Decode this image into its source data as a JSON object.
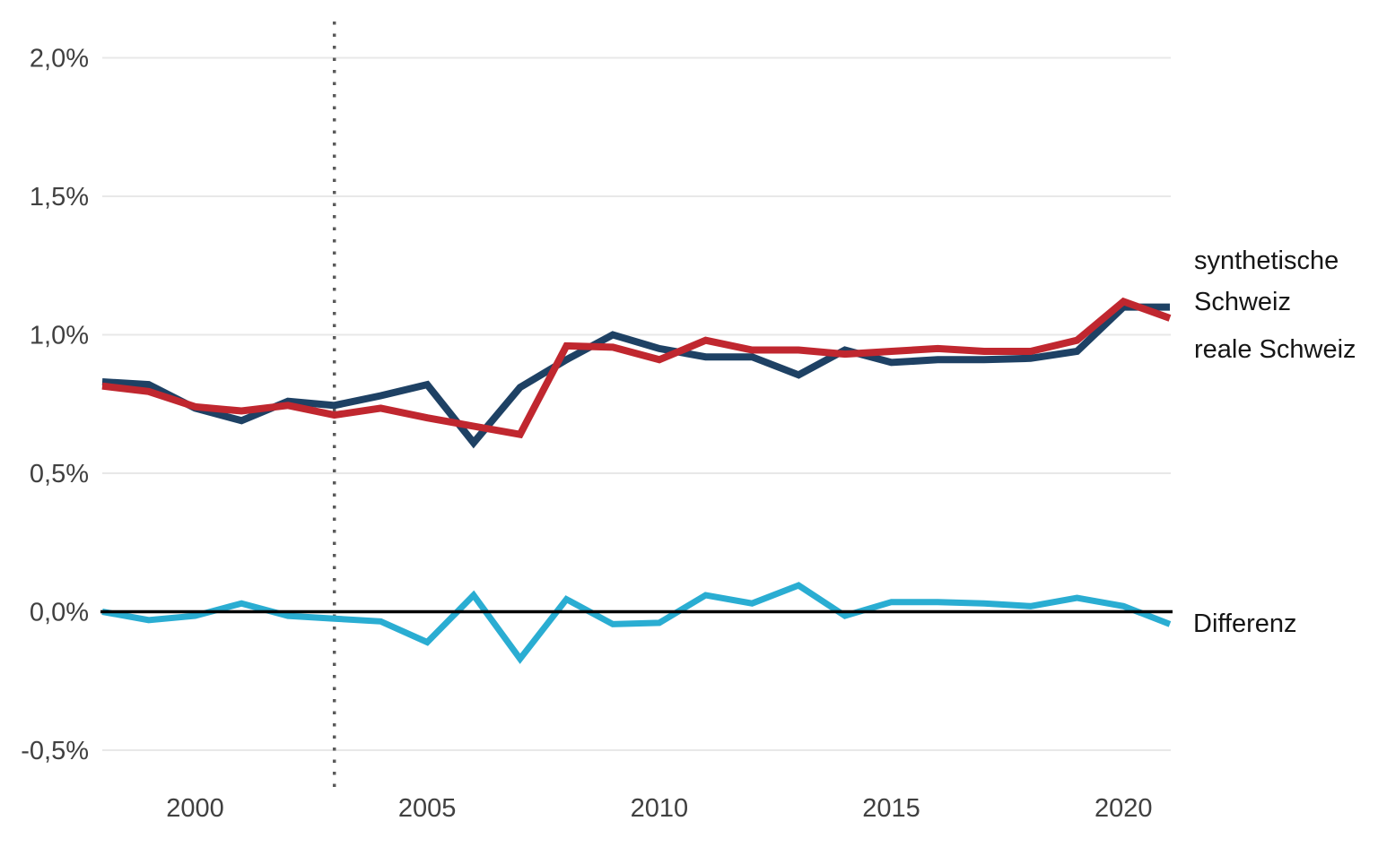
{
  "figure": {
    "background": "#ffffff",
    "right_labels": {
      "synthetic_line1": "synthetische",
      "synthetic_line2": "Schweiz",
      "real": "reale Schweiz",
      "difference": "Differenz"
    }
  },
  "chart_data": {
    "type": "line",
    "title": "",
    "xlabel": "",
    "ylabel": "",
    "x": [
      1998,
      1999,
      2000,
      2001,
      2002,
      2003,
      2004,
      2005,
      2006,
      2007,
      2008,
      2009,
      2010,
      2011,
      2012,
      2013,
      2014,
      2015,
      2016,
      2017,
      2018,
      2019,
      2020,
      2021
    ],
    "series": [
      {
        "name": "synthetische Schweiz",
        "color": "#1e4164",
        "stroke_width": 8,
        "values": [
          0.83,
          0.82,
          0.735,
          0.69,
          0.76,
          0.745,
          0.78,
          0.82,
          0.61,
          0.81,
          0.91,
          1.0,
          0.95,
          0.92,
          0.92,
          0.855,
          0.945,
          0.9,
          0.91,
          0.91,
          0.915,
          0.94,
          1.1,
          1.1
        ]
      },
      {
        "name": "reale Schweiz",
        "color": "#c0272f",
        "stroke_width": 8,
        "values": [
          0.815,
          0.795,
          0.74,
          0.725,
          0.745,
          0.71,
          0.735,
          0.7,
          0.67,
          0.64,
          0.96,
          0.955,
          0.91,
          0.98,
          0.945,
          0.945,
          0.93,
          0.94,
          0.95,
          0.94,
          0.94,
          0.98,
          1.12,
          1.06
        ]
      },
      {
        "name": "Differenz",
        "color": "#2aadd2",
        "stroke_width": 7,
        "values": [
          0.0,
          -0.03,
          -0.015,
          0.03,
          -0.015,
          -0.025,
          -0.035,
          -0.11,
          0.06,
          -0.17,
          0.045,
          -0.045,
          -0.04,
          0.06,
          0.03,
          0.095,
          -0.015,
          0.035,
          0.035,
          0.03,
          0.02,
          0.05,
          0.02,
          -0.045
        ]
      }
    ],
    "y_ticks": {
      "values": [
        2.0,
        1.5,
        1.0,
        0.5,
        0.0,
        -0.5
      ],
      "labels": [
        "2,0%",
        "1,5%",
        "1,0%",
        "0,5%",
        "0,0%",
        "-0,5%"
      ]
    },
    "x_ticks": {
      "values": [
        2000,
        2005,
        2010,
        2015,
        2020
      ],
      "labels": [
        "2000",
        "2005",
        "2010",
        "2015",
        "2020"
      ]
    },
    "xlim": [
      1998,
      2021
    ],
    "ylim": [
      -0.65,
      2.15
    ],
    "unit": "percent",
    "grid": "horizontal-only",
    "grid_color": "#e8e8e8",
    "tick_label_color": "#404040",
    "reference_line": {
      "y": 0,
      "color": "#000000"
    },
    "vline": {
      "x": 2003,
      "style": "dotted",
      "color": "#5a5a5a"
    },
    "legend_position": "right-annotations"
  }
}
